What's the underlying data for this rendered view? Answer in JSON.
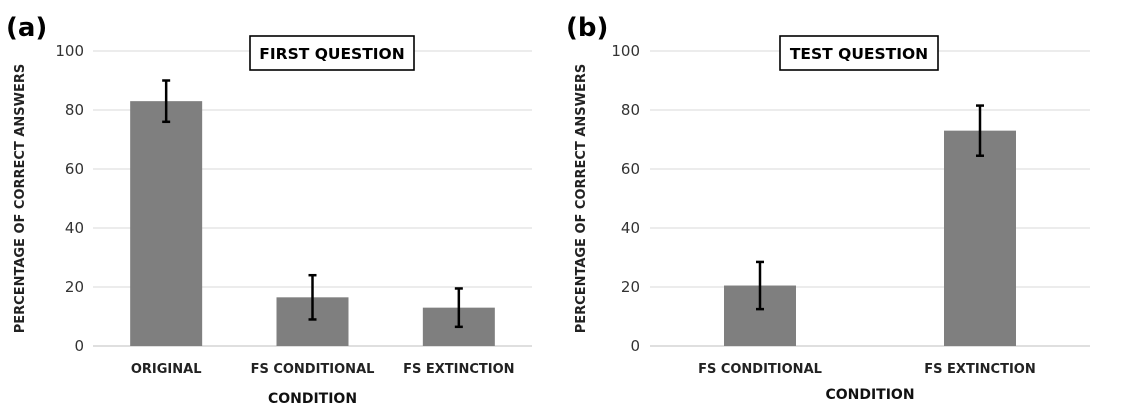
{
  "chart_data": [
    {
      "type": "bar",
      "panel_label": "(a)",
      "title": "FIRST QUESTION",
      "xlabel": "CONDITION",
      "ylabel": "PERCENTAGE OF CORRECT ANSWERS",
      "ylim": [
        0,
        100
      ],
      "yticks": [
        "0",
        "20",
        "40",
        "60",
        "80",
        "100"
      ],
      "grid": true,
      "categories": [
        "ORIGINAL",
        "FS CONDITIONAL",
        "FS EXTINCTION"
      ],
      "values": [
        83,
        16.5,
        13
      ],
      "error_low": [
        76,
        9,
        6.5
      ],
      "error_high": [
        90,
        24,
        19.5
      ],
      "bar_color": "#7f7f7f"
    },
    {
      "type": "bar",
      "panel_label": "(b)",
      "title": "TEST QUESTION",
      "xlabel": "CONDITION",
      "ylabel": "PERCENTAGE OF CORRECT ANSWERS",
      "ylim": [
        0,
        100
      ],
      "yticks": [
        "0",
        "20",
        "40",
        "60",
        "80",
        "100"
      ],
      "grid": true,
      "categories": [
        "FS CONDITIONAL",
        "FS EXTINCTION"
      ],
      "values": [
        20.5,
        73
      ],
      "error_low": [
        12.5,
        64.5
      ],
      "error_high": [
        28.5,
        81.5
      ],
      "bar_color": "#7f7f7f"
    }
  ]
}
